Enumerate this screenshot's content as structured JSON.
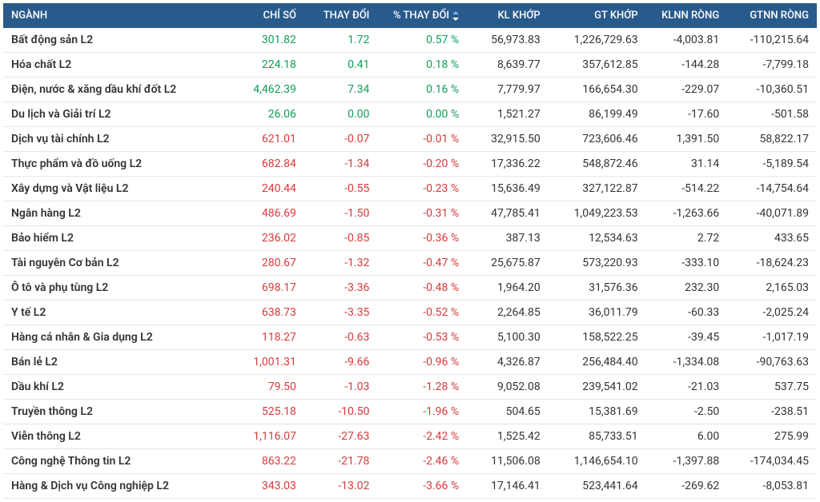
{
  "table": {
    "type": "table",
    "header_bg": "#285a8c",
    "header_fg": "#ffffff",
    "row_border": "#e6e6e6",
    "pos_color": "#0f9d58",
    "neg_color": "#d73a3a",
    "name_color": "#333333",
    "font_size": 14,
    "columns": [
      {
        "key": "name",
        "label": "NGÀNH",
        "width": "28%",
        "align": "left"
      },
      {
        "key": "index",
        "label": "CHỈ SỐ",
        "width": "9%",
        "align": "right"
      },
      {
        "key": "chg",
        "label": "THAY ĐỔI",
        "width": "9%",
        "align": "right"
      },
      {
        "key": "pct",
        "label": "% THAY ĐỔI",
        "width": "11%",
        "align": "right",
        "sort": true
      },
      {
        "key": "klkhop",
        "label": "KL KHỚP",
        "width": "10%",
        "align": "right"
      },
      {
        "key": "gtkhop",
        "label": "GT KHỚP",
        "width": "12%",
        "align": "right"
      },
      {
        "key": "klnn",
        "label": "KLNN RÒNG",
        "width": "10%",
        "align": "right"
      },
      {
        "key": "gtnn",
        "label": "GTNN RÒNG",
        "width": "11%",
        "align": "right"
      }
    ],
    "rows": [
      {
        "name": "Bất động sản L2",
        "index": "301.82",
        "chg": "1.72",
        "pct": "0.57 %",
        "dir": "pos",
        "klkhop": "56,973.83",
        "gtkhop": "1,226,729.63",
        "klnn": "-4,003.81",
        "gtnn": "-110,215.64"
      },
      {
        "name": "Hóa chất L2",
        "index": "224.18",
        "chg": "0.41",
        "pct": "0.18 %",
        "dir": "pos",
        "klkhop": "8,639.77",
        "gtkhop": "357,612.85",
        "klnn": "-144.28",
        "gtnn": "-7,799.18"
      },
      {
        "name": "Điện, nước & xăng dầu khí đốt L2",
        "index": "4,462.39",
        "chg": "7.34",
        "pct": "0.16 %",
        "dir": "pos",
        "klkhop": "7,779.97",
        "gtkhop": "166,654.30",
        "klnn": "-229.07",
        "gtnn": "-10,360.51"
      },
      {
        "name": "Du lịch và Giải trí L2",
        "index": "26.06",
        "chg": "0.00",
        "pct": "0.00 %",
        "dir": "pos",
        "klkhop": "1,521.27",
        "gtkhop": "86,199.49",
        "klnn": "-17.60",
        "gtnn": "-501.58"
      },
      {
        "name": "Dịch vụ tài chính L2",
        "index": "621.01",
        "chg": "-0.07",
        "pct": "-0.01 %",
        "dir": "neg",
        "klkhop": "32,915.50",
        "gtkhop": "723,606.46",
        "klnn": "1,391.50",
        "gtnn": "58,822.17"
      },
      {
        "name": "Thực phẩm và đồ uống L2",
        "index": "682.84",
        "chg": "-1.34",
        "pct": "-0.20 %",
        "dir": "neg",
        "klkhop": "17,336.22",
        "gtkhop": "548,872.46",
        "klnn": "31.14",
        "gtnn": "-5,189.54"
      },
      {
        "name": "Xây dựng và Vật liệu L2",
        "index": "240.44",
        "chg": "-0.55",
        "pct": "-0.23 %",
        "dir": "neg",
        "klkhop": "15,636.49",
        "gtkhop": "327,122.87",
        "klnn": "-514.22",
        "gtnn": "-14,754.64"
      },
      {
        "name": "Ngân hàng L2",
        "index": "486.69",
        "chg": "-1.50",
        "pct": "-0.31 %",
        "dir": "neg",
        "klkhop": "47,785.41",
        "gtkhop": "1,049,223.53",
        "klnn": "-1,263.66",
        "gtnn": "-40,071.89"
      },
      {
        "name": "Bảo hiểm L2",
        "index": "236.02",
        "chg": "-0.85",
        "pct": "-0.36 %",
        "dir": "neg",
        "klkhop": "387.13",
        "gtkhop": "12,534.63",
        "klnn": "2.72",
        "gtnn": "433.65"
      },
      {
        "name": "Tài nguyên Cơ bản L2",
        "index": "280.67",
        "chg": "-1.32",
        "pct": "-0.47 %",
        "dir": "neg",
        "klkhop": "25,675.87",
        "gtkhop": "573,220.93",
        "klnn": "-333.10",
        "gtnn": "-18,624.23"
      },
      {
        "name": "Ô tô và phụ tùng L2",
        "index": "698.17",
        "chg": "-3.36",
        "pct": "-0.48 %",
        "dir": "neg",
        "klkhop": "1,964.20",
        "gtkhop": "31,576.36",
        "klnn": "232.30",
        "gtnn": "2,165.03"
      },
      {
        "name": "Y tế L2",
        "index": "638.73",
        "chg": "-3.35",
        "pct": "-0.52 %",
        "dir": "neg",
        "klkhop": "2,264.85",
        "gtkhop": "36,011.79",
        "klnn": "-60.33",
        "gtnn": "-2,025.24"
      },
      {
        "name": "Hàng cá nhân & Gia dụng L2",
        "index": "118.27",
        "chg": "-0.63",
        "pct": "-0.53 %",
        "dir": "neg",
        "klkhop": "5,100.30",
        "gtkhop": "158,522.25",
        "klnn": "-39.45",
        "gtnn": "-1,017.19"
      },
      {
        "name": "Bán lẻ L2",
        "index": "1,001.31",
        "chg": "-9.66",
        "pct": "-0.96 %",
        "dir": "neg",
        "klkhop": "4,326.87",
        "gtkhop": "256,484.40",
        "klnn": "-1,334.08",
        "gtnn": "-90,763.63"
      },
      {
        "name": "Dầu khí L2",
        "index": "79.50",
        "chg": "-1.03",
        "pct": "-1.28 %",
        "dir": "neg",
        "klkhop": "9,052.08",
        "gtkhop": "239,541.02",
        "klnn": "-21.03",
        "gtnn": "537.75"
      },
      {
        "name": "Truyền thông L2",
        "index": "525.18",
        "chg": "-10.50",
        "pct": "-1.96 %",
        "dir": "neg",
        "klkhop": "504.65",
        "gtkhop": "15,381.69",
        "klnn": "-2.50",
        "gtnn": "-238.51"
      },
      {
        "name": "Viễn thông L2",
        "index": "1,116.07",
        "chg": "-27.63",
        "pct": "-2.42 %",
        "dir": "neg",
        "klkhop": "1,525.42",
        "gtkhop": "85,733.51",
        "klnn": "6.00",
        "gtnn": "275.99"
      },
      {
        "name": "Công nghệ Thông tin L2",
        "index": "863.22",
        "chg": "-21.78",
        "pct": "-2.46 %",
        "dir": "neg",
        "klkhop": "11,506.08",
        "gtkhop": "1,146,654.10",
        "klnn": "-1,397.88",
        "gtnn": "-174,034.45"
      },
      {
        "name": "Hàng & Dịch vụ Công nghiệp L2",
        "index": "343.03",
        "chg": "-13.02",
        "pct": "-3.66 %",
        "dir": "neg",
        "klkhop": "17,146.41",
        "gtkhop": "523,441.64",
        "klnn": "-269.62",
        "gtnn": "-8,053.81"
      }
    ]
  }
}
